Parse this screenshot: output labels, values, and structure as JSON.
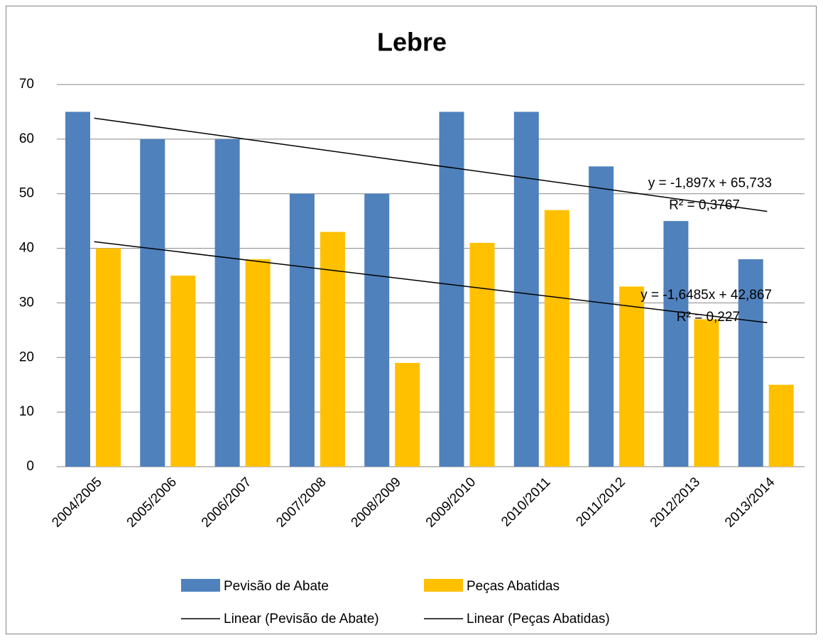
{
  "chart_data": {
    "type": "bar",
    "title": "Lebre",
    "categories": [
      "2004/2005",
      "2005/2006",
      "2006/2007",
      "2007/2008",
      "2008/2009",
      "2009/2010",
      "2010/2011",
      "2011/2012",
      "2012/2013",
      "2013/2014"
    ],
    "series": [
      {
        "name": "Pevisão de Abate",
        "color": "#4f81bd",
        "values": [
          65,
          60,
          60,
          50,
          50,
          65,
          65,
          55,
          45,
          38
        ]
      },
      {
        "name": "Peças Abatidas",
        "color": "#ffc000",
        "values": [
          40,
          35,
          38,
          43,
          19,
          41,
          47,
          33,
          27,
          15
        ]
      }
    ],
    "trendlines": [
      {
        "name": "Linear (Pevisão de Abate)",
        "color": "#000000",
        "slope": -1.897,
        "intercept": 65.733,
        "equation": "y = -1,897x + 65,733",
        "r2": "R² = 0,3767"
      },
      {
        "name": "Linear (Peças Abatidas)",
        "color": "#000000",
        "slope": -1.6485,
        "intercept": 42.867,
        "equation": "y = -1,6485x + 42,867",
        "r2": "R² = 0,227"
      }
    ],
    "ylim": [
      0,
      70
    ],
    "yticks": [
      0,
      10,
      20,
      30,
      40,
      50,
      60,
      70
    ],
    "grid": true
  }
}
